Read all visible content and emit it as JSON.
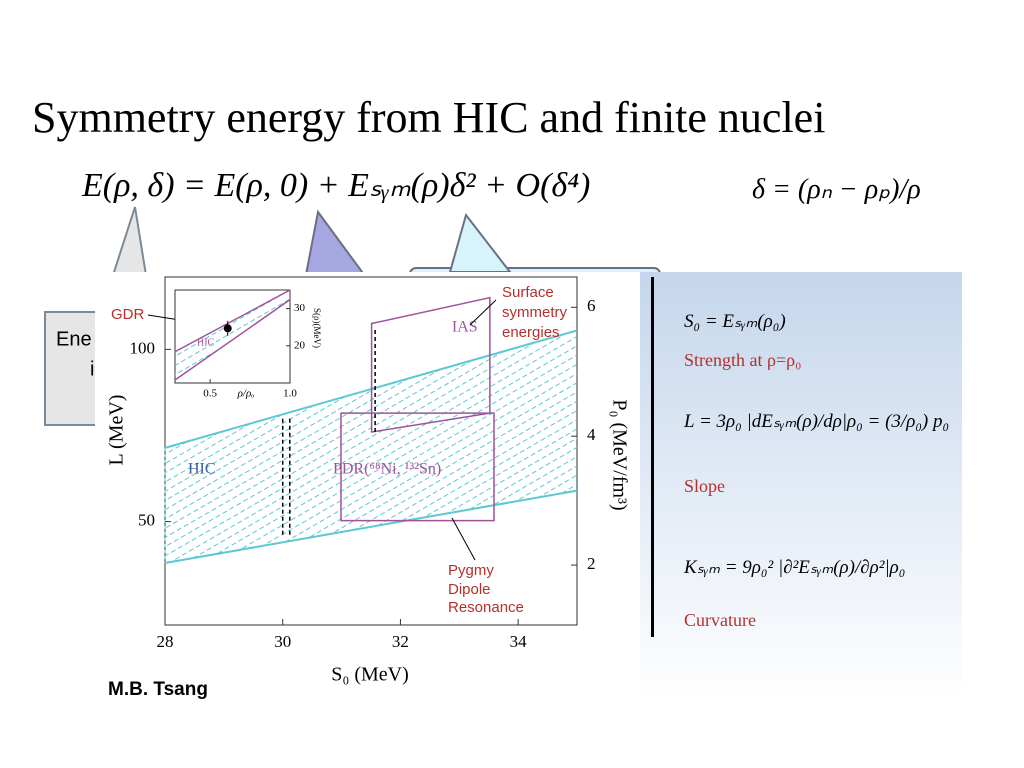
{
  "slide": {
    "title": "Symmetry energy from HIC and finite nuclei",
    "equation": "E(ρ,  δ) = E(ρ,  0) + Eₛᵧₘ(ρ)δ² + O(δ⁴)",
    "delta_definition": "δ = (ρₙ − ρₚ)/ρ",
    "callout_texts": [
      "Ene",
      "i"
    ],
    "credit": "M.B. Tsang",
    "formulas": [
      {
        "formula": "S₀ = Eₛᵧₘ(ρ₀)",
        "label": "Strength at ρ=ρ₀"
      },
      {
        "formula": "L = 3ρ₀ |dEₛᵧₘ(ρ)/dρ|ρ₀ = (3/ρ₀) p₀",
        "label": "Slope"
      },
      {
        "formula": "Kₛᵧₘ = 9ρ₀² |∂²Eₛᵧₘ(ρ)/∂ρ²|ρ₀",
        "label": "Curvature"
      }
    ]
  },
  "chart_data": {
    "type": "band",
    "x_label": "S₀ (MeV)",
    "y_label": "L (MeV)",
    "y2_label": "P₀ (MeV/fm³)",
    "xlim": [
      28,
      35
    ],
    "xticks": [
      28,
      30,
      32,
      34
    ],
    "ylim": [
      20,
      121
    ],
    "yticks": [
      50,
      100
    ],
    "y2lim": [
      1.07,
      6.47
    ],
    "y2ticks": [
      2,
      4,
      6
    ],
    "series": [
      {
        "name": "HIC",
        "color": "#5cc8d2",
        "x": [
          28,
          35
        ],
        "lower": [
          38,
          59
        ],
        "upper": [
          71.4,
          105.5
        ]
      }
    ],
    "regions": [
      {
        "name": "IAS",
        "color": "#a0529a",
        "x": [
          31.51,
          33.52,
          33.52,
          31.51
        ],
        "y": [
          107.5,
          115,
          81.5,
          76
        ]
      },
      {
        "name": "PDR(⁶⁸Ni,  ¹³²Sn)",
        "color": "#a0529a",
        "x": [
          30.99,
          33.59,
          33.59,
          30.99
        ],
        "y": [
          81.5,
          81.5,
          50.3,
          50.3
        ]
      }
    ],
    "dashed_lines": [
      {
        "x": 30.0,
        "y": [
          46.2,
          80
        ]
      },
      {
        "x": 30.12,
        "y": [
          46.2,
          80
        ]
      },
      {
        "x": 31.57,
        "y": [
          76,
          106
        ]
      }
    ],
    "annotations": [
      "GDR",
      "Surface",
      "symmetry",
      "energies",
      "Pygmy",
      "Dipole",
      "Resonance"
    ],
    "inset": {
      "x_label": "ρ/ρₒ",
      "y_label": "S(ρ)(MeV)",
      "band_label": "HIC",
      "xlim": [
        0.28,
        1.0
      ],
      "xticks": [
        0.5,
        {
          "value": 1.0,
          "label": "1.0"
        }
      ],
      "ylim": [
        10,
        35
      ],
      "yticks": [
        20,
        30
      ],
      "x": [
        0.28,
        1.0
      ],
      "lower": [
        10.8,
        32.4
      ],
      "upper": [
        18.4,
        35
      ],
      "point": {
        "x": 0.61,
        "y": 24.7,
        "error": 2
      }
    }
  }
}
